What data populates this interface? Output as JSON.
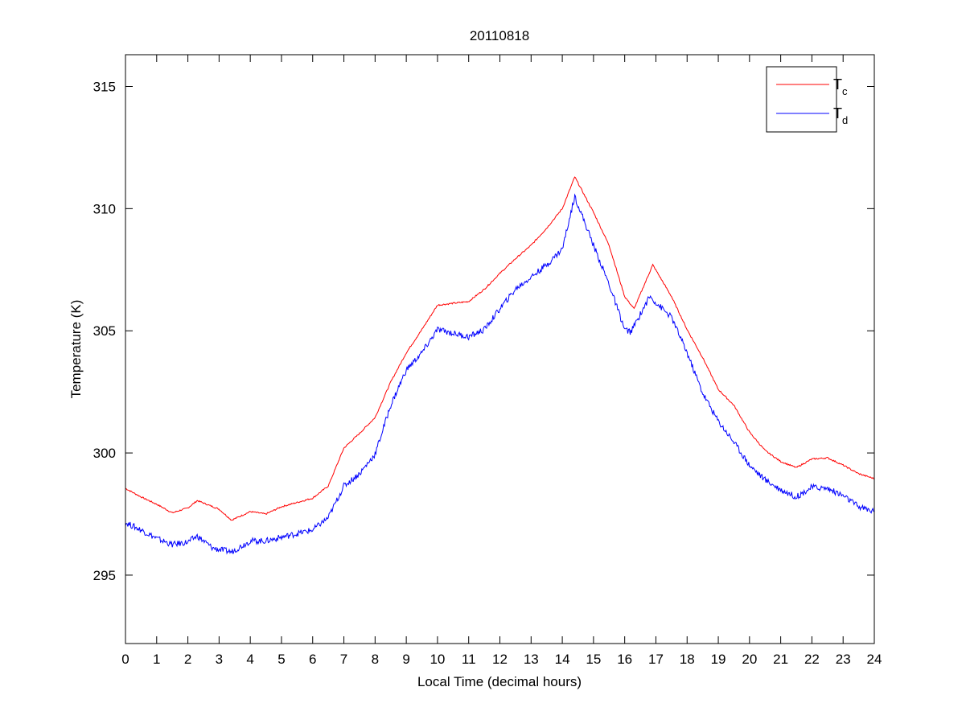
{
  "chart_data": {
    "type": "line",
    "title": "20110818",
    "xlabel": "Local Time (decimal hours)",
    "ylabel": "Temperature (K)",
    "xlim": [
      0,
      24
    ],
    "ylim": [
      292.2,
      316.3
    ],
    "xticks": [
      0,
      1,
      2,
      3,
      4,
      5,
      6,
      7,
      8,
      9,
      10,
      11,
      12,
      13,
      14,
      15,
      16,
      17,
      18,
      19,
      20,
      21,
      22,
      23,
      24
    ],
    "yticks": [
      295,
      300,
      305,
      310,
      315
    ],
    "grid": false,
    "legend_position": "top-right",
    "series": [
      {
        "name": "T",
        "subscript": "c",
        "color": "#ff0000",
        "x": [
          0,
          0.5,
          1,
          1.5,
          2,
          2.3,
          3,
          3.4,
          4,
          4.5,
          5,
          6,
          6.5,
          7,
          7.5,
          8,
          8.5,
          9,
          9.5,
          10,
          11,
          11.5,
          12,
          12.5,
          13,
          13.5,
          14,
          14.4,
          15,
          15.5,
          16,
          16.3,
          16.9,
          17.5,
          18,
          18.5,
          19,
          19.5,
          20,
          20.5,
          21,
          21.5,
          22,
          22.5,
          23,
          23.5,
          24
        ],
        "y": [
          298.55,
          298.2,
          297.9,
          297.55,
          297.75,
          298.05,
          297.7,
          297.25,
          297.6,
          297.5,
          297.8,
          298.15,
          298.65,
          300.2,
          300.8,
          301.45,
          302.9,
          304.1,
          305.05,
          306.05,
          306.2,
          306.7,
          307.35,
          307.95,
          308.5,
          309.2,
          310.0,
          311.3,
          309.85,
          308.5,
          306.4,
          305.9,
          307.7,
          306.4,
          305.05,
          303.9,
          302.6,
          301.95,
          300.85,
          300.1,
          299.65,
          299.4,
          299.75,
          299.8,
          299.5,
          299.15,
          298.95
        ]
      },
      {
        "name": "T",
        "subscript": "d",
        "color": "#0000ff",
        "x": [
          0,
          0.5,
          1,
          1.5,
          2,
          2.3,
          2.8,
          3.4,
          4,
          4.5,
          5,
          6,
          6.5,
          7,
          7.5,
          8,
          8.5,
          9,
          9.5,
          10,
          11,
          11.5,
          12,
          12.5,
          13,
          13.5,
          14,
          14.4,
          15,
          15.5,
          16,
          16.2,
          16.8,
          17.5,
          18,
          18.5,
          19,
          19.5,
          20,
          20.5,
          21,
          21.5,
          22,
          22.5,
          23,
          23.5,
          24
        ],
        "y": [
          297.15,
          296.85,
          296.5,
          296.25,
          296.35,
          296.6,
          296.1,
          295.95,
          296.4,
          296.4,
          296.55,
          296.85,
          297.35,
          298.65,
          299.15,
          299.95,
          301.95,
          303.4,
          304.1,
          305.05,
          304.75,
          305.05,
          305.9,
          306.7,
          307.2,
          307.7,
          308.35,
          310.5,
          308.5,
          306.9,
          305.05,
          304.95,
          306.4,
          305.55,
          304.1,
          302.45,
          301.3,
          300.45,
          299.5,
          298.9,
          298.5,
          298.2,
          298.6,
          298.55,
          298.25,
          297.8,
          297.6
        ]
      }
    ]
  }
}
